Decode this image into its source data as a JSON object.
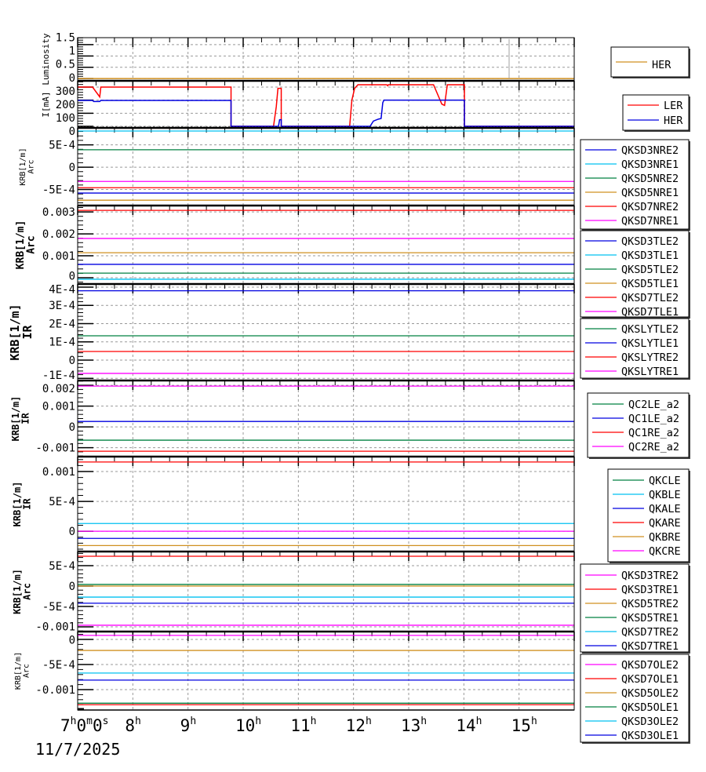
{
  "colors": {
    "blue": "#0000e0",
    "cyan": "#00c0f0",
    "green": "#008040",
    "gold": "#d09020",
    "red": "#ff0000",
    "magenta": "#ff00ff",
    "gray": "#a0a0a0",
    "black": "#000000"
  },
  "x_axis": {
    "range_hours": [
      7,
      16
    ],
    "ticks": [
      {
        "h": 7,
        "label": "7",
        "sup": "h",
        "extra": "0",
        "sup2": "m",
        "extra2": "0",
        "sup3": "s"
      },
      {
        "h": 8,
        "label": "8",
        "sup": "h"
      },
      {
        "h": 9,
        "label": "9",
        "sup": "h"
      },
      {
        "h": 10,
        "label": "10",
        "sup": "h"
      },
      {
        "h": 11,
        "label": "11",
        "sup": "h"
      },
      {
        "h": 12,
        "label": "12",
        "sup": "h"
      },
      {
        "h": 13,
        "label": "13",
        "sup": "h"
      },
      {
        "h": 14,
        "label": "14",
        "sup": "h"
      },
      {
        "h": 15,
        "label": "15",
        "sup": "h"
      }
    ],
    "date": "11/7/2025"
  },
  "chart_data": [
    {
      "type": "line",
      "ylabel": [
        "Luminosity"
      ],
      "ylim": [
        -0.1,
        1.81
      ],
      "yticks": [
        {
          "v": 0,
          "label": "0"
        },
        {
          "v": 0.5,
          "label": "0.5"
        },
        {
          "v": 1,
          "label": "1"
        },
        {
          "v": 1.5,
          "label": "1.5"
        }
      ],
      "series": [
        {
          "name": "HER",
          "color": "gold",
          "points": [
            [
              7,
              0
            ],
            [
              16,
              0
            ]
          ]
        },
        {
          "name": "",
          "color": "gray",
          "points": [
            [
              14.82,
              0
            ],
            [
              14.82,
              1.75
            ]
          ],
          "nolegend": true
        }
      ]
    },
    {
      "type": "line",
      "ylabel": [
        "I[mA]"
      ],
      "ylim": [
        -12,
        348
      ],
      "yticks": [
        {
          "v": 0,
          "label": "0"
        },
        {
          "v": 100,
          "label": "100"
        },
        {
          "v": 200,
          "label": "200"
        },
        {
          "v": 300,
          "label": "300"
        }
      ],
      "series": [
        {
          "name": "LER",
          "color": "red",
          "points": [
            [
              7,
              300
            ],
            [
              7.27,
              300
            ],
            [
              7.4,
              225
            ],
            [
              7.42,
              300
            ],
            [
              9.78,
              300
            ],
            [
              9.78,
              0
            ],
            [
              10.55,
              0
            ],
            [
              10.6,
              150
            ],
            [
              10.63,
              290
            ],
            [
              10.69,
              290
            ],
            [
              10.69,
              0
            ],
            [
              11.93,
              0
            ],
            [
              11.97,
              200
            ],
            [
              12.02,
              290
            ],
            [
              12.08,
              318
            ],
            [
              12.6,
              318
            ],
            [
              12.62,
              310
            ],
            [
              12.63,
              318
            ],
            [
              13.45,
              318
            ],
            [
              13.6,
              170
            ],
            [
              13.65,
              160
            ],
            [
              13.7,
              318
            ],
            [
              14.01,
              318
            ],
            [
              14.01,
              0
            ],
            [
              16,
              0
            ]
          ]
        },
        {
          "name": "HER",
          "color": "blue",
          "points": [
            [
              7,
              198
            ],
            [
              7.27,
              198
            ],
            [
              7.29,
              190
            ],
            [
              7.4,
              190
            ],
            [
              7.42,
              198
            ],
            [
              9.78,
              198
            ],
            [
              9.78,
              0
            ],
            [
              10.64,
              0
            ],
            [
              10.66,
              50
            ],
            [
              10.69,
              50
            ],
            [
              10.69,
              0
            ],
            [
              12.3,
              0
            ],
            [
              12.36,
              40
            ],
            [
              12.45,
              55
            ],
            [
              12.5,
              60
            ],
            [
              12.53,
              180
            ],
            [
              12.55,
              200
            ],
            [
              14.01,
              200
            ],
            [
              14.01,
              0
            ],
            [
              16,
              0
            ]
          ]
        }
      ]
    },
    {
      "type": "line",
      "ylabel": [
        "KRB[1/m]",
        "Arc"
      ],
      "ylim": [
        -0.00086,
        0.00088
      ],
      "yticks": [
        {
          "v": -0.0005,
          "label": "-5E-4"
        },
        {
          "v": 0,
          "label": "0"
        },
        {
          "v": 0.0005,
          "label": "5E-4"
        }
      ],
      "series": [
        {
          "name": "QKSD3NRE2",
          "color": "blue",
          "value": -0.00058
        },
        {
          "name": "QKSD3NRE1",
          "color": "cyan",
          "value": 0.00081
        },
        {
          "name": "QKSD5NRE2",
          "color": "green",
          "value": 0.00039
        },
        {
          "name": "QKSD5NRE1",
          "color": "gold",
          "value": -0.00074
        },
        {
          "name": "QKSD7NRE2",
          "color": "red",
          "value": -0.00046
        },
        {
          "name": "QKSD7NRE1",
          "color": "magenta",
          "value": -0.00032
        }
      ]
    },
    {
      "type": "line",
      "ylabel": [
        "KRB[1/m]",
        "Arc"
      ],
      "ylim": [
        -0.000286,
        0.00329
      ],
      "yticks": [
        {
          "v": 0,
          "label": "0"
        },
        {
          "v": 0.001,
          "label": "0.001"
        },
        {
          "v": 0.002,
          "label": "0.002"
        },
        {
          "v": 0.003,
          "label": "0.003"
        }
      ],
      "series": [
        {
          "name": "QKSD3TLE2",
          "color": "blue",
          "value": 0.00061
        },
        {
          "name": "QKSD3TLE1",
          "color": "cyan",
          "value": -7e-05
        },
        {
          "name": "QKSD5TLE2",
          "color": "green",
          "value": 0.00021
        },
        {
          "name": "QKSD5TLE1",
          "color": "gold",
          "value": 0.00114
        },
        {
          "name": "QKSD7TLE2",
          "color": "red",
          "value": 0.00307
        },
        {
          "name": "QKSD7TLE1",
          "color": "magenta",
          "value": 0.00179
        }
      ]
    },
    {
      "type": "line",
      "ylabel": [
        "KRB[1/m]",
        "IR"
      ],
      "ylim": [
        -0.000112,
        0.000417
      ],
      "yticks": [
        {
          "v": -0.0001,
          "label": "-1E-4"
        },
        {
          "v": 0,
          "label": "0"
        },
        {
          "v": 0.0001,
          "label": "1E-4"
        },
        {
          "v": 0.0002,
          "label": "2E-4"
        },
        {
          "v": 0.0003,
          "label": "3E-4"
        },
        {
          "v": 0.0004,
          "label": "4E-4"
        }
      ],
      "series": [
        {
          "name": "QKSLYTLE2",
          "color": "green",
          "value": 0.000133
        },
        {
          "name": "QKSLYTLE1",
          "color": "blue",
          "value": 0.00038
        },
        {
          "name": "QKSLYTRE2",
          "color": "red",
          "value": 4.7e-05
        },
        {
          "name": "QKSLYTRE1",
          "color": "magenta",
          "value": -7.3e-05
        }
      ]
    },
    {
      "type": "line",
      "ylabel": [
        "KRB[1/m]",
        "IR"
      ],
      "ylim": [
        -0.00143,
        0.00223
      ],
      "yticks": [
        {
          "v": -0.001,
          "label": "-0.001"
        },
        {
          "v": 0,
          "label": "0"
        },
        {
          "v": 0.001,
          "label": "0.001"
        },
        {
          "v": 0.002,
          "label": "0.002"
        }
      ],
      "series": [
        {
          "name": "QC2LE_a2",
          "color": "green",
          "value": -0.00064
        },
        {
          "name": "QC1LE_a2",
          "color": "blue",
          "value": 0.00026
        },
        {
          "name": "QC1RE_a2",
          "color": "red",
          "value": -0.00117
        },
        {
          "name": "QC2RE_a2",
          "color": "magenta",
          "value": 0.00196
        }
      ]
    },
    {
      "type": "line",
      "ylabel": [
        "KRB[1/m]",
        "IR"
      ],
      "ylim": [
        -0.00034,
        0.00125
      ],
      "yticks": [
        {
          "v": 0,
          "label": "0"
        },
        {
          "v": 0.0005,
          "label": "5E-4"
        },
        {
          "v": 0.001,
          "label": "0.001"
        }
      ],
      "series": [
        {
          "name": "QKCLE",
          "color": "green",
          "value": null
        },
        {
          "name": "QKBLE",
          "color": "cyan",
          "value": 0.00013
        },
        {
          "name": "QKALE",
          "color": "blue",
          "value": -0.00012
        },
        {
          "name": "QKARE",
          "color": "red",
          "value": 0.00116
        },
        {
          "name": "QKBRE",
          "color": "gold",
          "value": -0.00024
        },
        {
          "name": "QKCRE",
          "color": "magenta",
          "value": 0.0
        }
      ]
    },
    {
      "type": "line",
      "ylabel": [
        "KRB[1/m]",
        "Arc"
      ],
      "ylim": [
        -0.001115,
        0.000846
      ],
      "yticks": [
        {
          "v": -0.001,
          "label": "-0.001"
        },
        {
          "v": -0.0005,
          "label": "-5E-4"
        },
        {
          "v": 0,
          "label": "0"
        },
        {
          "v": 0.0005,
          "label": "5E-4"
        }
      ],
      "series": [
        {
          "name": "QKSD3TRE2",
          "color": "magenta",
          "value": -0.00096
        },
        {
          "name": "QKSD3TRE1",
          "color": "red",
          "value": 0.00073
        },
        {
          "name": "QKSD5TRE2",
          "color": "gold",
          "value": 0.0
        },
        {
          "name": "QKSD5TRE1",
          "color": "green",
          "value": 4e-05
        },
        {
          "name": "QKSD7TRE2",
          "color": "cyan",
          "value": -0.00027
        },
        {
          "name": "QKSD7TRE1",
          "color": "blue",
          "value": -0.00042
        }
      ]
    },
    {
      "type": "line",
      "ylabel": [
        "KRB[1/m]",
        "Arc"
      ],
      "ylim": [
        -0.001406,
        0.000156
      ],
      "yticks": [
        {
          "v": -0.001,
          "label": "-0.001"
        },
        {
          "v": -0.0005,
          "label": "-5E-4"
        },
        {
          "v": 0,
          "label": "0"
        }
      ],
      "series": [
        {
          "name": "QKSD7OLE2",
          "color": "magenta",
          "value": 8e-05
        },
        {
          "name": "QKSD7OLE1",
          "color": "red",
          "value": -0.0013
        },
        {
          "name": "QKSD5OLE2",
          "color": "gold",
          "value": -0.00022
        },
        {
          "name": "QKSD5OLE1",
          "color": "green",
          "value": -0.00127
        },
        {
          "name": "QKSD3OLE2",
          "color": "cyan",
          "value": -0.00067
        },
        {
          "name": "QKSD3OLE1",
          "color": "blue",
          "value": -0.00081
        }
      ]
    }
  ]
}
